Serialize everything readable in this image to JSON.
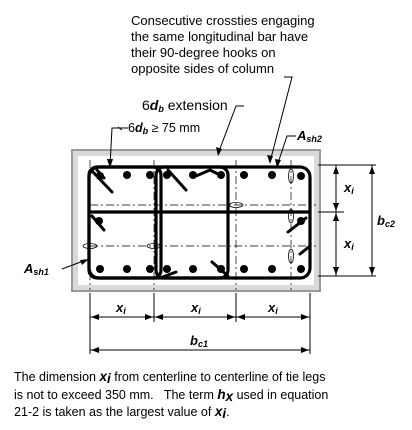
{
  "callouts": {
    "crossties": [
      "Consecutive crossties engaging",
      "the same longitudinal bar have",
      "their 90-degree hooks on",
      "opposite sides of column"
    ],
    "ext_6db_prefix": "6",
    "ext_6db_suffix": " extension",
    "ext_75_prefix": "6",
    "ext_75_suffix": " ≥ 75 mm",
    "d_var": "d",
    "d_sub": "b"
  },
  "labels": {
    "ash_var": "A",
    "ash2_sub": "sh2",
    "ash1_sub": "sh1",
    "x_var": "x",
    "x_sub": "i",
    "b_var": "b",
    "bc2_sub": "c2",
    "bc1_sub": "c1"
  },
  "caption": {
    "line1_pre": "The dimension ",
    "line1_post": " from centerline to centerline of tie legs",
    "line2": "is not to exceed 350 mm.   The term ",
    "line2_post": " used in equation",
    "line3_pre": "21-2 is taken as the largest value of ",
    "line3_post": ".",
    "h_var": "h",
    "h_sub": "x"
  }
}
